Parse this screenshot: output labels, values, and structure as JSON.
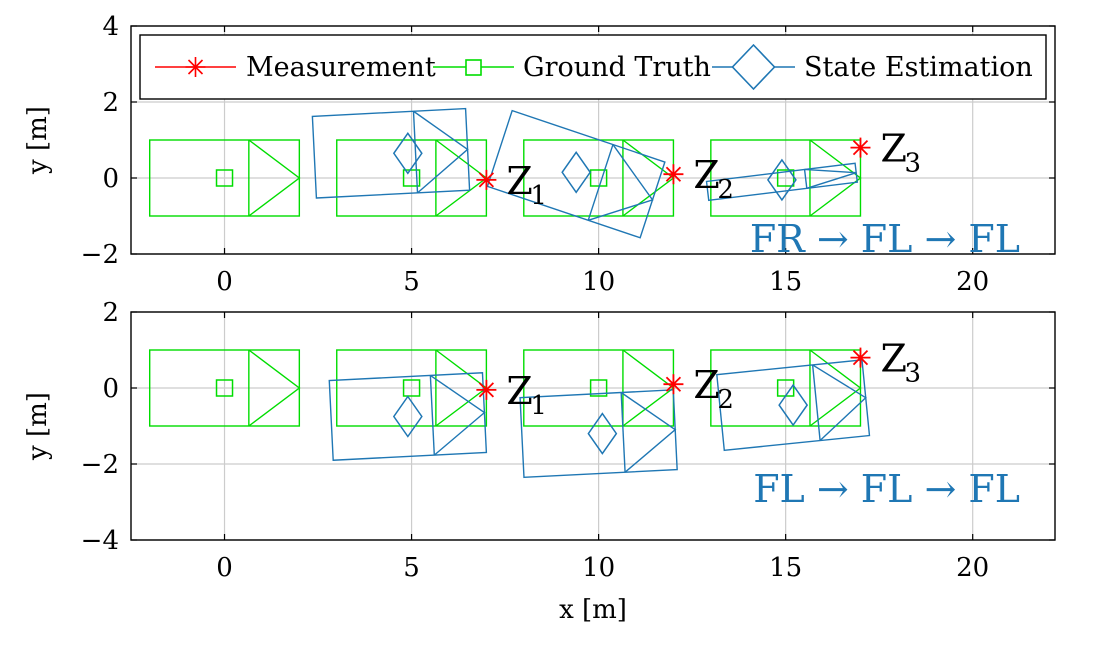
{
  "colors": {
    "measurement": "#ff0000",
    "ground_truth": "#00dd00",
    "state_estimation": "#1f77b4",
    "grid": "#cccccc"
  },
  "legend": {
    "placement": "top",
    "measurement": "Measurement",
    "ground_truth": "Ground Truth",
    "state_estimation": "State Estimation"
  },
  "chart_data": [
    {
      "type": "scatter",
      "xlabel": "",
      "ylabel": "y [m]",
      "xlim": [
        -2.5,
        22.2
      ],
      "ylim": [
        -2,
        4
      ],
      "xticks": [
        "0",
        "5",
        "10",
        "15",
        "20"
      ],
      "yticks": [
        "−2",
        "0",
        "2",
        "4"
      ],
      "grid": true,
      "annotation": "FR → FL → FL",
      "measurements": [
        {
          "label": "Z",
          "sub": "1",
          "x": 7.0,
          "y": -0.05
        },
        {
          "label": "Z",
          "sub": "2",
          "x": 12.0,
          "y": 0.1
        },
        {
          "label": "Z",
          "sub": "3",
          "x": 17.0,
          "y": 0.8
        }
      ],
      "ground_truth": [
        {
          "x": 0,
          "y": 0
        },
        {
          "x": 5,
          "y": 0
        },
        {
          "x": 10,
          "y": 0
        },
        {
          "x": 15,
          "y": 0
        }
      ],
      "state_estimation": [
        {
          "x": 4.9,
          "y": 0.65
        },
        {
          "x": 9.4,
          "y": 0.15
        },
        {
          "x": 14.9,
          "y": -0.05
        }
      ]
    },
    {
      "type": "scatter",
      "xlabel": "x [m]",
      "ylabel": "y [m]",
      "xlim": [
        -2.5,
        22.2
      ],
      "ylim": [
        -4,
        2
      ],
      "xticks": [
        "0",
        "5",
        "10",
        "15",
        "20"
      ],
      "yticks": [
        "−4",
        "−2",
        "0",
        "2"
      ],
      "grid": true,
      "annotation": "FL → FL → FL",
      "measurements": [
        {
          "label": "Z",
          "sub": "1",
          "x": 7.0,
          "y": -0.05
        },
        {
          "label": "Z",
          "sub": "2",
          "x": 12.0,
          "y": 0.1
        },
        {
          "label": "Z",
          "sub": "3",
          "x": 17.0,
          "y": 0.8
        }
      ],
      "ground_truth": [
        {
          "x": 0,
          "y": 0
        },
        {
          "x": 5,
          "y": 0
        },
        {
          "x": 10,
          "y": 0
        },
        {
          "x": 15,
          "y": 0
        }
      ],
      "state_estimation": [
        {
          "x": 4.9,
          "y": -0.75
        },
        {
          "x": 10.1,
          "y": -1.2
        },
        {
          "x": 15.2,
          "y": -0.45
        }
      ]
    }
  ]
}
